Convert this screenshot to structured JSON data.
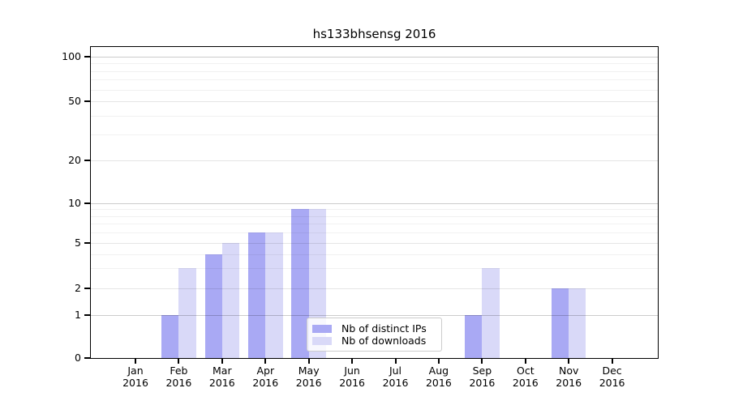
{
  "chart_data": {
    "type": "bar",
    "title": "hs133bhsensg 2016",
    "year_label": "2016",
    "months": [
      "Jan",
      "Feb",
      "Mar",
      "Apr",
      "May",
      "Jun",
      "Jul",
      "Aug",
      "Sep",
      "Oct",
      "Nov",
      "Dec"
    ],
    "series": [
      {
        "name": "Nb of distinct IPs",
        "color": "#a9a9f4",
        "values": [
          0,
          1,
          4,
          6,
          9,
          0,
          0,
          0,
          1,
          0,
          2,
          0
        ]
      },
      {
        "name": "Nb of downloads",
        "color": "#d9d9f8",
        "values": [
          0,
          3,
          5,
          6,
          9,
          0,
          0,
          0,
          3,
          0,
          2,
          0
        ]
      }
    ],
    "yticks": [
      0,
      1,
      2,
      5,
      10,
      20,
      50,
      100
    ],
    "ylim": [
      0,
      100
    ],
    "yscale": "log above 1, linear 0-1",
    "xlabel": "",
    "ylabel": "",
    "grid": true,
    "grid_over_bars": true,
    "legend_position": "lower center",
    "colors": {
      "grid_major": "rgba(0,0,0,0.20)",
      "grid_medium": "rgba(0,0,0,0.10)",
      "grid_minor": "rgba(0,0,0,0.055)",
      "axis": "#000000",
      "background": "#ffffff"
    }
  }
}
